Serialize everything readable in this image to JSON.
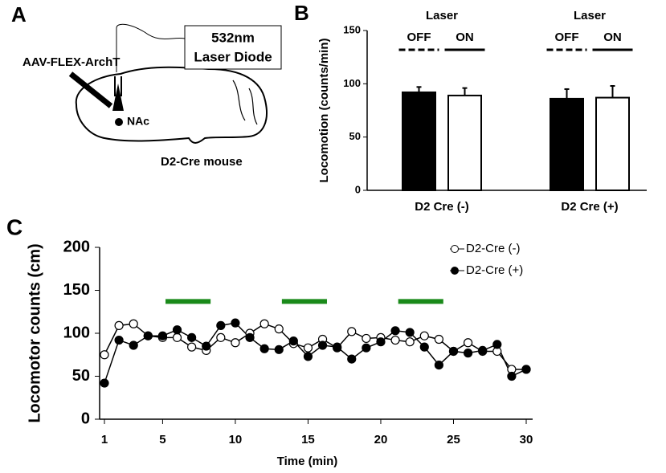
{
  "diagram": {
    "panel": "A",
    "injection": "AAV-FLEX-ArchT",
    "laser_line1": "532nm",
    "laser_line2": "Laser Diode",
    "target": "NAc",
    "animal": "D2-Cre mouse"
  },
  "chart_data": [
    {
      "type": "bar",
      "panel": "B",
      "ylabel": "Locomotion (counts/min)",
      "annotation": "Laser",
      "categories": [
        "D2 Cre (-)",
        "D2 Cre (+)"
      ],
      "series": [
        {
          "name": "OFF",
          "color": "#000000",
          "dashed": true,
          "values": [
            92,
            86
          ],
          "errors": [
            5,
            9
          ]
        },
        {
          "name": "ON",
          "color": "#ffffff",
          "dashed": false,
          "values": [
            89,
            87
          ],
          "errors": [
            7,
            11
          ]
        }
      ],
      "ylim": [
        0,
        150
      ],
      "yticks": [
        0,
        50,
        100,
        150
      ]
    },
    {
      "type": "line",
      "panel": "C",
      "xlabel": "Time (min)",
      "ylabel": "Locomotor counts (cm)",
      "x": [
        1,
        2,
        3,
        4,
        5,
        6,
        7,
        8,
        9,
        10,
        11,
        12,
        13,
        14,
        15,
        16,
        17,
        18,
        19,
        20,
        21,
        22,
        23,
        24,
        25,
        26,
        27,
        28,
        29,
        30
      ],
      "series": [
        {
          "name": "D2-Cre (-)",
          "color": "#ffffff",
          "values": [
            75,
            109,
            111,
            97,
            95,
            95,
            84,
            80,
            95,
            89,
            100,
            111,
            105,
            88,
            83,
            93,
            83,
            102,
            94,
            95,
            92,
            90,
            97,
            93,
            79,
            89,
            79,
            79,
            58,
            58
          ]
        },
        {
          "name": "D2-Cre (+)",
          "color": "#000000",
          "values": [
            42,
            92,
            86,
            97,
            97,
            104,
            95,
            85,
            109,
            112,
            95,
            82,
            81,
            91,
            73,
            86,
            84,
            70,
            83,
            90,
            103,
            101,
            84,
            63,
            79,
            77,
            80,
            87,
            50,
            58
          ]
        }
      ],
      "highlight_ranges": [
        [
          5.2,
          8.3
        ],
        [
          13.2,
          16.3
        ],
        [
          21.2,
          24.3
        ]
      ],
      "highlight_y": 137,
      "highlight_color": "#1a8a1a",
      "xlim": [
        1,
        30
      ],
      "xticks": [
        1,
        5,
        10,
        15,
        20,
        25,
        30
      ],
      "ylim": [
        0,
        200
      ],
      "yticks": [
        0,
        50,
        100,
        150,
        200
      ]
    }
  ]
}
